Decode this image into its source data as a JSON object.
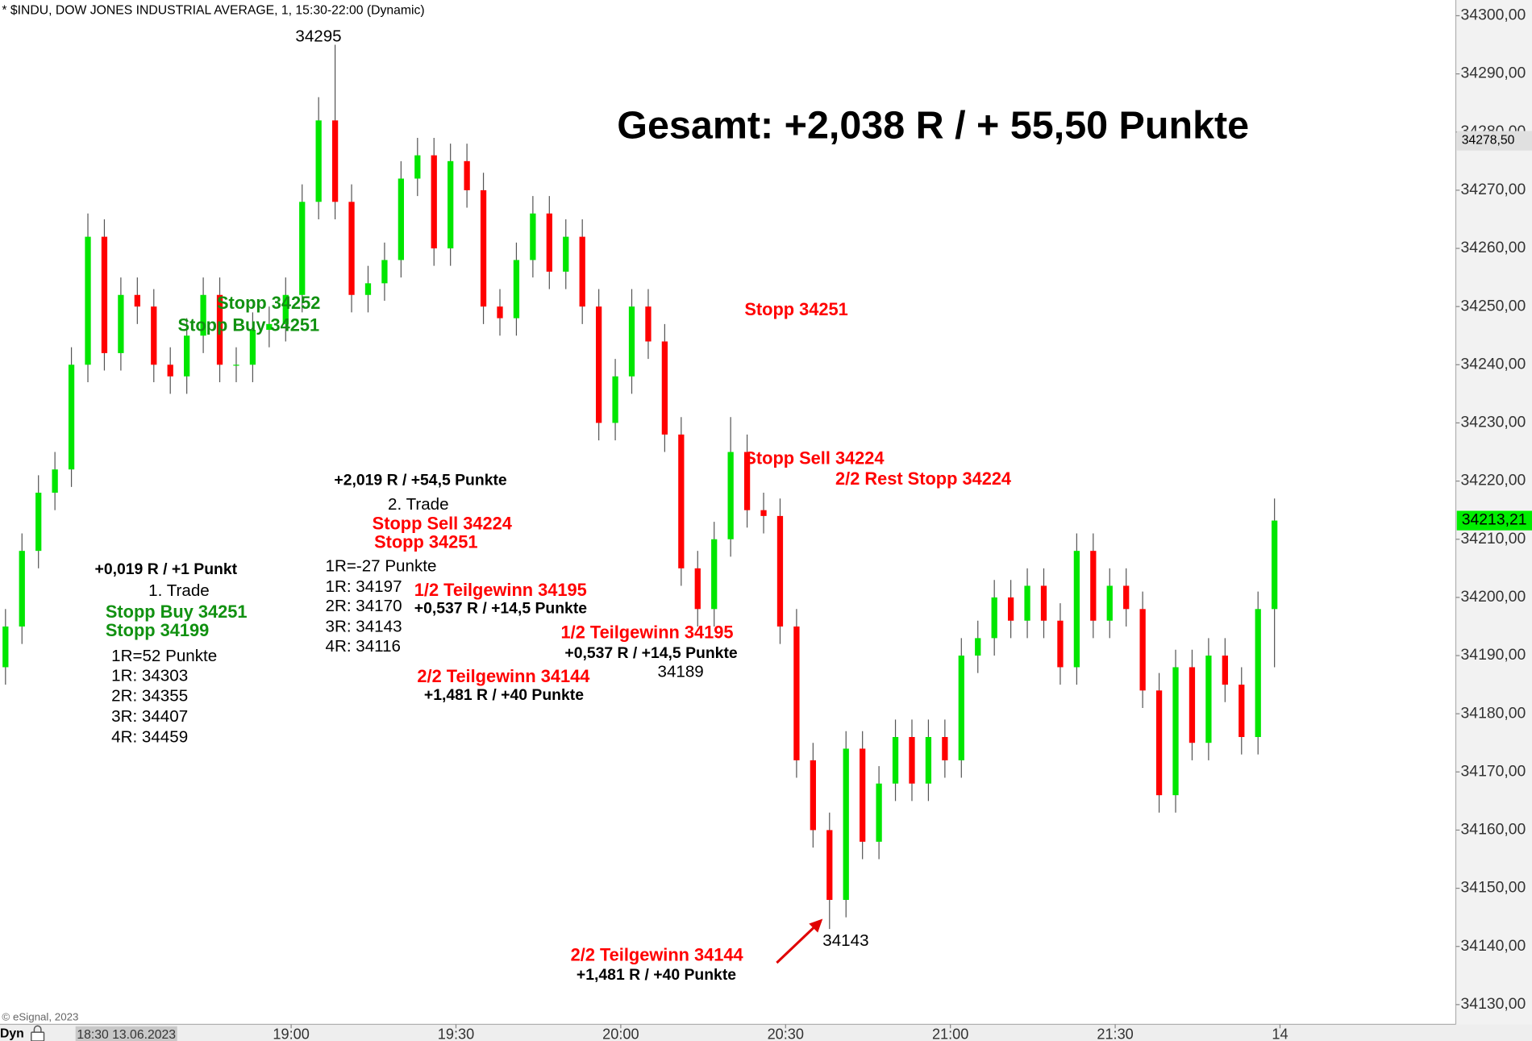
{
  "chart_data": {
    "type": "candlestick",
    "header": "* $INDU, DOW JONES INDUSTRIAL AVERAGE, 1, 15:30-22:00 (Dynamic)",
    "title": "Gesamt: +2,038 R / + 55,50 Punkte",
    "copyright": "© eSignal, 2023",
    "mode_label": "Dyn",
    "x": [
      "18:08",
      "18:11",
      "18:14",
      "18:17",
      "18:20",
      "18:23",
      "18:26",
      "18:29",
      "18:32",
      "18:35",
      "18:38",
      "18:41",
      "18:44",
      "18:47",
      "18:50",
      "18:53",
      "18:56",
      "18:59",
      "19:02",
      "19:05",
      "19:08",
      "19:11",
      "19:14",
      "19:17",
      "19:20",
      "19:23",
      "19:26",
      "19:29",
      "19:32",
      "19:35",
      "19:38",
      "19:41",
      "19:44",
      "19:47",
      "19:50",
      "19:53",
      "19:56",
      "19:59",
      "20:02",
      "20:05",
      "20:08",
      "20:11",
      "20:14",
      "20:17",
      "20:20",
      "20:23",
      "20:26",
      "20:29",
      "20:32",
      "20:35",
      "20:38",
      "20:41",
      "20:44",
      "20:47",
      "20:50",
      "20:53",
      "20:56",
      "20:59",
      "21:02",
      "21:05",
      "21:08",
      "21:11",
      "21:14",
      "21:17",
      "21:20",
      "21:23",
      "21:26",
      "21:29",
      "21:32",
      "21:35",
      "21:38",
      "21:41",
      "21:44",
      "21:47",
      "21:50",
      "21:53",
      "21:56",
      "21:59"
    ],
    "open": [
      34188,
      34195,
      34208,
      34218,
      34222,
      34240,
      34262,
      34242,
      34252,
      34250,
      34240,
      34238,
      34245,
      34252,
      34240,
      34240,
      34246,
      34247,
      34252,
      34268,
      34282,
      34268,
      34252,
      34254,
      34258,
      34272,
      34276,
      34260,
      34275,
      34270,
      34250,
      34248,
      34258,
      34266,
      34256,
      34262,
      34250,
      34230,
      34238,
      34250,
      34244,
      34228,
      34205,
      34198,
      34210,
      34225,
      34215,
      34214,
      34195,
      34172,
      34160,
      34148,
      34174,
      34158,
      34168,
      34176,
      34168,
      34176,
      34172,
      34190,
      34193,
      34200,
      34196,
      34202,
      34196,
      34188,
      34208,
      34196,
      34202,
      34198,
      34184,
      34166,
      34188,
      34175,
      34190,
      34185,
      34176,
      34198
    ],
    "high": [
      34198,
      34211,
      34221,
      34225,
      34243,
      34266,
      34265,
      34255,
      34255,
      34253,
      34243,
      34248,
      34255,
      34255,
      34243,
      34249,
      34250,
      34255,
      34271,
      34286,
      34295,
      34271,
      34257,
      34261,
      34275,
      34279,
      34279,
      34278,
      34278,
      34273,
      34253,
      34261,
      34269,
      34269,
      34265,
      34265,
      34253,
      34241,
      34253,
      34253,
      34247,
      34231,
      34208,
      34213,
      34231,
      34228,
      34218,
      34217,
      34198,
      34175,
      34163,
      34177,
      34177,
      34171,
      34179,
      34179,
      34179,
      34179,
      34193,
      34196,
      34203,
      34203,
      34205,
      34205,
      34199,
      34211,
      34211,
      34205,
      34205,
      34201,
      34187,
      34191,
      34191,
      34193,
      34193,
      34188,
      34201,
      34217
    ],
    "low": [
      34185,
      34192,
      34205,
      34215,
      34219,
      34237,
      34239,
      34239,
      34247,
      34237,
      34235,
      34235,
      34242,
      34237,
      34237,
      34237,
      34243,
      34244,
      34249,
      34265,
      34265,
      34249,
      34249,
      34251,
      34255,
      34269,
      34257,
      34257,
      34267,
      34247,
      34245,
      34245,
      34255,
      34253,
      34253,
      34247,
      34227,
      34227,
      34235,
      34241,
      34225,
      34202,
      34195,
      34195,
      34207,
      34212,
      34211,
      34192,
      34169,
      34157,
      34143,
      34145,
      34155,
      34155,
      34165,
      34165,
      34165,
      34169,
      34169,
      34187,
      34190,
      34193,
      34193,
      34193,
      34185,
      34185,
      34193,
      34193,
      34195,
      34181,
      34163,
      34163,
      34172,
      34172,
      34182,
      34173,
      34173,
      34188
    ],
    "close": [
      34195,
      34208,
      34218,
      34222,
      34240,
      34262,
      34242,
      34252,
      34250,
      34240,
      34238,
      34245,
      34252,
      34240,
      34240,
      34246,
      34247,
      34252,
      34268,
      34282,
      34268,
      34252,
      34254,
      34258,
      34272,
      34276,
      34260,
      34275,
      34270,
      34250,
      34248,
      34258,
      34266,
      34256,
      34262,
      34250,
      34230,
      34238,
      34250,
      34244,
      34228,
      34205,
      34198,
      34210,
      34225,
      34215,
      34214,
      34195,
      34172,
      34160,
      34148,
      34174,
      34158,
      34168,
      34176,
      34168,
      34176,
      34172,
      34190,
      34193,
      34200,
      34196,
      34202,
      34196,
      34188,
      34208,
      34196,
      34202,
      34198,
      34184,
      34166,
      34188,
      34175,
      34190,
      34185,
      34176,
      34198,
      34213.21
    ],
    "up_color": "#00e600",
    "down_color": "#ff0000",
    "xlim": [
      "18:07",
      "22:32"
    ],
    "xticks": [
      "19:00",
      "19:30",
      "20:00",
      "20:30",
      "21:00",
      "21:30",
      {
        "value": "22:00",
        "label": "14"
      }
    ],
    "x_cursor": {
      "value": "18:30",
      "label": "18:30 13.06.2023"
    },
    "ylim": [
      34126.6,
      34302.7
    ],
    "yticks": [
      {
        "value": 34130,
        "label": "34130,00"
      },
      {
        "value": 34140,
        "label": "34140,00"
      },
      {
        "value": 34150,
        "label": "34150,00"
      },
      {
        "value": 34160,
        "label": "34160,00"
      },
      {
        "value": 34170,
        "label": "34170,00"
      },
      {
        "value": 34180,
        "label": "34180,00"
      },
      {
        "value": 34190,
        "label": "34190,00"
      },
      {
        "value": 34200,
        "label": "34200,00"
      },
      {
        "value": 34210,
        "label": "34210,00"
      },
      {
        "value": 34220,
        "label": "34220,00"
      },
      {
        "value": 34230,
        "label": "34230,00"
      },
      {
        "value": 34240,
        "label": "34240,00"
      },
      {
        "value": 34250,
        "label": "34250,00"
      },
      {
        "value": 34260,
        "label": "34260,00"
      },
      {
        "value": 34270,
        "label": "34270,00"
      },
      {
        "value": 34280,
        "label": "34280,00"
      },
      {
        "value": 34290,
        "label": "34290,00"
      },
      {
        "value": 34300,
        "label": "34300,00"
      }
    ],
    "price_markers": [
      {
        "value": 34278.5,
        "label": "34278,50",
        "color": "#e0e0e0"
      },
      {
        "value": 34213.21,
        "label": "34213,21",
        "color": "#00ee00"
      }
    ],
    "grid": false,
    "annotations": [
      {
        "text": "34295",
        "color": "#000000"
      },
      {
        "text": "Stopp 34252",
        "color": "#119111"
      },
      {
        "text": "Stopp Buy 34251",
        "color": "#119111"
      },
      {
        "text": "Stopp 34251",
        "color": "#ff0000"
      },
      {
        "text": "Stopp Sell 34224",
        "color": "#ff0000"
      },
      {
        "text": "2/2 Rest Stopp 34224",
        "color": "#ff0000"
      },
      {
        "text": "+2,019 R / +54,5 Punkte",
        "color": "#000000"
      },
      {
        "text": "2. Trade",
        "color": "#000000"
      },
      {
        "text": "Stopp Sell 34224",
        "color": "#ff0000"
      },
      {
        "text": "Stopp 34251",
        "color": "#ff0000"
      },
      {
        "text": "1R=-27 Punkte",
        "color": "#000000"
      },
      {
        "text": "1R: 34197",
        "color": "#000000"
      },
      {
        "text": "2R: 34170",
        "color": "#000000"
      },
      {
        "text": "3R: 34143",
        "color": "#000000"
      },
      {
        "text": "4R: 34116",
        "color": "#000000"
      },
      {
        "text": "1/2 Teilgewinn 34195",
        "color": "#ff0000"
      },
      {
        "text": "+0,537 R / +14,5 Punkte",
        "color": "#000000"
      },
      {
        "text": "1/2 Teilgewinn 34195",
        "color": "#ff0000"
      },
      {
        "text": "+0,537 R / +14,5 Punkte",
        "color": "#000000"
      },
      {
        "text": "34189",
        "color": "#000000"
      },
      {
        "text": "2/2 Teilgewinn 34144",
        "color": "#ff0000"
      },
      {
        "text": "+1,481 R / +40 Punkte",
        "color": "#000000"
      },
      {
        "text": "+0,019 R / +1 Punkt",
        "color": "#000000"
      },
      {
        "text": "1. Trade",
        "color": "#000000"
      },
      {
        "text": "Stopp Buy 34251",
        "color": "#119111"
      },
      {
        "text": "Stopp 34199",
        "color": "#119111"
      },
      {
        "text": "1R=52 Punkte",
        "color": "#000000"
      },
      {
        "text": "1R: 34303",
        "color": "#000000"
      },
      {
        "text": "2R: 34355",
        "color": "#000000"
      },
      {
        "text": "3R: 34407",
        "color": "#000000"
      },
      {
        "text": "4R: 34459",
        "color": "#000000"
      },
      {
        "text": "2/2 Teilgewinn 34144",
        "color": "#ff0000"
      },
      {
        "text": "+1,481 R / +40 Punkte",
        "color": "#000000"
      },
      {
        "text": "34143",
        "color": "#000000"
      }
    ]
  }
}
